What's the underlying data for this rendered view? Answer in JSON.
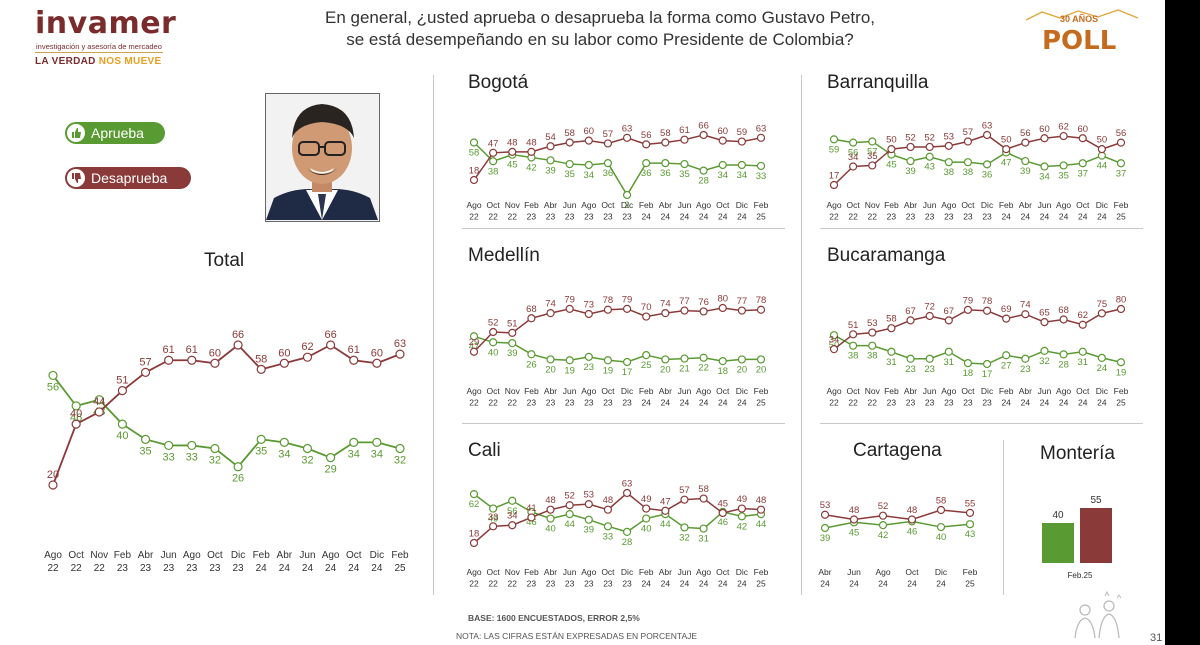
{
  "header": {
    "brand": "invamer",
    "brand_sub": "investigación y asesoría de mercadeo",
    "tagline_a": "LA VERDAD",
    "tagline_b": "NOS MUEVE",
    "question_line1": "En general, ¿usted aprueba o desaprueba la forma como Gustavo Petro,",
    "question_line2": "se está desempeñando en su labor como Presidente de Colombia?",
    "poll_word": "POLL",
    "poll_sub": "30 AÑOS"
  },
  "legend": {
    "approve_label": "Aprueba",
    "disapprove_label": "Desaprueba",
    "approve_color": "#5a9a32",
    "disapprove_color": "#8b3a3a",
    "approve_icon": "thumbs-up-icon",
    "disapprove_icon": "thumbs-down-icon"
  },
  "footer": {
    "base": "BASE: 1600 ENCUESTADOS, ERROR 2,5%",
    "note": "NOTA: LAS CIFRAS ESTÁN EXPRESADAS EN PORCENTAJE",
    "page": "31"
  },
  "chart_data": [
    {
      "id": "total",
      "type": "line",
      "title": "Total",
      "categories": [
        [
          "Ago",
          "22"
        ],
        [
          "Oct",
          "22"
        ],
        [
          "Nov",
          "22"
        ],
        [
          "Feb",
          "23"
        ],
        [
          "Abr",
          "23"
        ],
        [
          "Jun",
          "23"
        ],
        [
          "Ago",
          "23"
        ],
        [
          "Oct",
          "23"
        ],
        [
          "Dic",
          "23"
        ],
        [
          "Feb",
          "24"
        ],
        [
          "Abr",
          "24"
        ],
        [
          "Jun",
          "24"
        ],
        [
          "Ago",
          "24"
        ],
        [
          "Oct",
          "24"
        ],
        [
          "Dic",
          "24"
        ],
        [
          "Feb",
          "25"
        ]
      ],
      "series": [
        {
          "key": "aprueba",
          "values": [
            56,
            46,
            48,
            40,
            35,
            33,
            33,
            32,
            26,
            35,
            34,
            32,
            29,
            34,
            34,
            32
          ]
        },
        {
          "key": "desaprueba",
          "values": [
            20,
            40,
            44,
            51,
            57,
            61,
            61,
            60,
            66,
            58,
            60,
            62,
            66,
            61,
            60,
            63
          ]
        }
      ]
    },
    {
      "id": "bogota",
      "type": "line",
      "title": "Bogotá",
      "categories": [
        [
          "Ago",
          "22"
        ],
        [
          "Oct",
          "22"
        ],
        [
          "Nov",
          "22"
        ],
        [
          "Feb",
          "23"
        ],
        [
          "Abr",
          "23"
        ],
        [
          "Jun",
          "23"
        ],
        [
          "Ago",
          "23"
        ],
        [
          "Oct",
          "23"
        ],
        [
          "Dic",
          "23"
        ],
        [
          "Feb",
          "24"
        ],
        [
          "Abr",
          "24"
        ],
        [
          "Jun",
          "24"
        ],
        [
          "Ago",
          "24"
        ],
        [
          "Oct",
          "24"
        ],
        [
          "Dic",
          "24"
        ],
        [
          "Feb",
          "25"
        ]
      ],
      "series": [
        {
          "key": "aprueba",
          "values": [
            58,
            38,
            45,
            42,
            39,
            35,
            34,
            36,
            2,
            36,
            36,
            35,
            28,
            34,
            34,
            33
          ]
        },
        {
          "key": "desaprueba",
          "values": [
            18,
            47,
            48,
            48,
            54,
            58,
            60,
            57,
            63,
            56,
            58,
            61,
            66,
            60,
            59,
            63
          ]
        }
      ]
    },
    {
      "id": "barranquilla",
      "type": "line",
      "title": "Barranquilla",
      "categories": [
        [
          "Ago",
          "22"
        ],
        [
          "Oct",
          "22"
        ],
        [
          "Nov",
          "22"
        ],
        [
          "Feb",
          "23"
        ],
        [
          "Abr",
          "23"
        ],
        [
          "Jun",
          "23"
        ],
        [
          "Ago",
          "23"
        ],
        [
          "Oct",
          "23"
        ],
        [
          "Dic",
          "23"
        ],
        [
          "Feb",
          "24"
        ],
        [
          "Abr",
          "24"
        ],
        [
          "Jun",
          "24"
        ],
        [
          "Ago",
          "24"
        ],
        [
          "Oct",
          "24"
        ],
        [
          "Dic",
          "24"
        ],
        [
          "Feb",
          "25"
        ]
      ],
      "series": [
        {
          "key": "aprueba",
          "values": [
            59,
            56,
            57,
            45,
            39,
            43,
            38,
            38,
            36,
            47,
            39,
            34,
            35,
            37,
            44,
            37
          ]
        },
        {
          "key": "desaprueba",
          "values": [
            17,
            34,
            35,
            50,
            52,
            52,
            53,
            57,
            63,
            50,
            56,
            60,
            62,
            60,
            50,
            56
          ]
        }
      ]
    },
    {
      "id": "medellin",
      "type": "line",
      "title": "Medellín",
      "categories": [
        [
          "Ago",
          "22"
        ],
        [
          "Oct",
          "22"
        ],
        [
          "Nov",
          "22"
        ],
        [
          "Feb",
          "23"
        ],
        [
          "Abr",
          "23"
        ],
        [
          "Jun",
          "23"
        ],
        [
          "Ago",
          "23"
        ],
        [
          "Oct",
          "23"
        ],
        [
          "Dic",
          "23"
        ],
        [
          "Feb",
          "24"
        ],
        [
          "Abr",
          "24"
        ],
        [
          "Jun",
          "24"
        ],
        [
          "Ago",
          "24"
        ],
        [
          "Oct",
          "24"
        ],
        [
          "Dic",
          "24"
        ],
        [
          "Feb",
          "25"
        ]
      ],
      "series": [
        {
          "key": "aprueba",
          "values": [
            47,
            40,
            39,
            26,
            20,
            19,
            23,
            19,
            17,
            25,
            20,
            21,
            22,
            18,
            20,
            20
          ]
        },
        {
          "key": "desaprueba",
          "values": [
            29,
            52,
            51,
            68,
            74,
            79,
            73,
            78,
            79,
            70,
            74,
            77,
            76,
            80,
            77,
            78
          ]
        }
      ]
    },
    {
      "id": "bucaramanga",
      "type": "line",
      "title": "Bucaramanga",
      "categories": [
        [
          "Ago",
          "22"
        ],
        [
          "Oct",
          "22"
        ],
        [
          "Nov",
          "22"
        ],
        [
          "Feb",
          "23"
        ],
        [
          "Abr",
          "23"
        ],
        [
          "Jun",
          "23"
        ],
        [
          "Ago",
          "23"
        ],
        [
          "Oct",
          "23"
        ],
        [
          "Dic",
          "23"
        ],
        [
          "Feb",
          "24"
        ],
        [
          "Abr",
          "24"
        ],
        [
          "Jun",
          "24"
        ],
        [
          "Ago",
          "24"
        ],
        [
          "Oct",
          "24"
        ],
        [
          "Dic",
          "24"
        ],
        [
          "Feb",
          "25"
        ]
      ],
      "series": [
        {
          "key": "aprueba",
          "values": [
            50,
            38,
            38,
            31,
            23,
            23,
            31,
            18,
            17,
            27,
            23,
            32,
            28,
            31,
            24,
            19
          ]
        },
        {
          "key": "desaprueba",
          "values": [
            34,
            51,
            53,
            58,
            67,
            72,
            67,
            79,
            78,
            69,
            74,
            65,
            68,
            62,
            75,
            80
          ]
        }
      ]
    },
    {
      "id": "cali",
      "type": "line",
      "title": "Cali",
      "categories": [
        [
          "Ago",
          "22"
        ],
        [
          "Oct",
          "22"
        ],
        [
          "Nov",
          "22"
        ],
        [
          "Feb",
          "23"
        ],
        [
          "Abr",
          "23"
        ],
        [
          "Jun",
          "23"
        ],
        [
          "Ago",
          "23"
        ],
        [
          "Oct",
          "23"
        ],
        [
          "Dic",
          "23"
        ],
        [
          "Feb",
          "24"
        ],
        [
          "Abr",
          "24"
        ],
        [
          "Jun",
          "24"
        ],
        [
          "Ago",
          "24"
        ],
        [
          "Oct",
          "24"
        ],
        [
          "Dic",
          "24"
        ],
        [
          "Feb",
          "25"
        ]
      ],
      "series": [
        {
          "key": "aprueba",
          "values": [
            62,
            49,
            56,
            46,
            40,
            44,
            39,
            33,
            28,
            40,
            44,
            32,
            31,
            46,
            42,
            44
          ]
        },
        {
          "key": "desaprueba",
          "values": [
            18,
            33,
            34,
            41,
            48,
            52,
            53,
            48,
            63,
            49,
            47,
            57,
            58,
            45,
            49,
            48
          ]
        }
      ]
    },
    {
      "id": "cartagena",
      "type": "line",
      "title": "Cartagena",
      "categories": [
        [
          "Abr",
          "24"
        ],
        [
          "Jun",
          "24"
        ],
        [
          "Ago",
          "24"
        ],
        [
          "Oct",
          "24"
        ],
        [
          "Dic",
          "24"
        ],
        [
          "Feb",
          "25"
        ]
      ],
      "series": [
        {
          "key": "aprueba",
          "values": [
            39,
            45,
            42,
            46,
            40,
            43
          ]
        },
        {
          "key": "desaprueba",
          "values": [
            53,
            48,
            52,
            48,
            58,
            55
          ]
        }
      ]
    },
    {
      "id": "monteria",
      "type": "bar",
      "title": "Montería",
      "categories": [
        "Feb.25"
      ],
      "series": [
        {
          "key": "aprueba",
          "values": [
            40
          ]
        },
        {
          "key": "desaprueba",
          "values": [
            55
          ]
        }
      ]
    }
  ]
}
